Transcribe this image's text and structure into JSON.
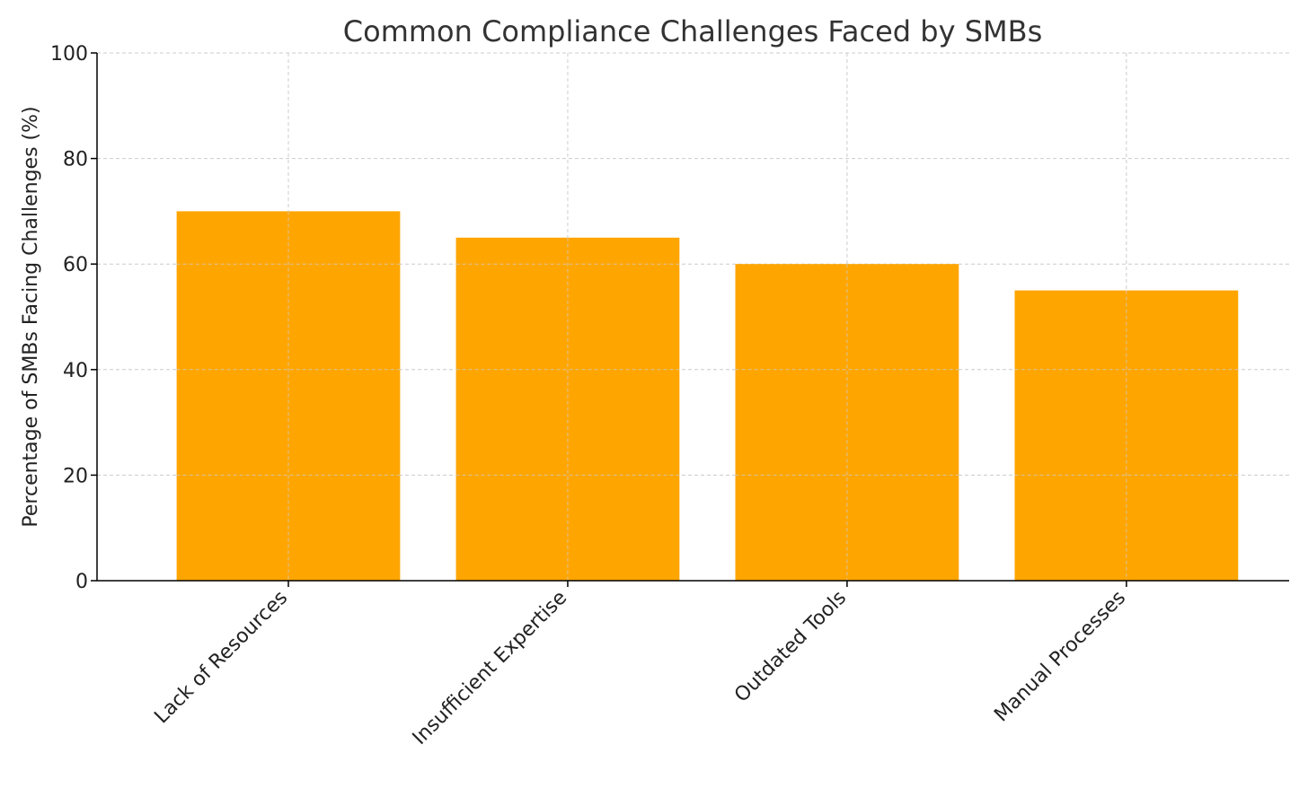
{
  "chart_data": {
    "type": "bar",
    "title": "Common Compliance Challenges Faced by SMBs",
    "xlabel": "",
    "ylabel": "Percentage of SMBs Facing Challenges (%)",
    "categories": [
      "Lack of Resources",
      "Insufficient Expertise",
      "Outdated Tools",
      "Manual Processes"
    ],
    "values": [
      70,
      65,
      60,
      55
    ],
    "ylim": [
      0,
      100
    ],
    "yticks": [
      0,
      20,
      40,
      60,
      80,
      100
    ],
    "grid": true,
    "bar_color": "#FFA500",
    "grid_color": "#cccccc",
    "axis_color": "#000000"
  }
}
